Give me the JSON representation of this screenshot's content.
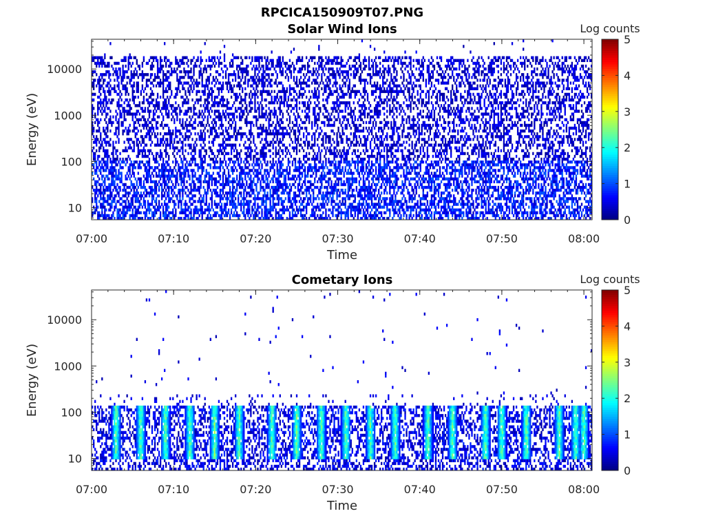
{
  "figure": {
    "title": "RPCICA150909T07.PNG"
  },
  "colorbar": {
    "label": "Log counts",
    "ticks": [
      "0",
      "1",
      "2",
      "3",
      "4",
      "5"
    ],
    "colormap": "jet"
  },
  "chart_data": [
    {
      "type": "heatmap",
      "title": "Solar Wind Ions",
      "xlabel": "Time",
      "ylabel": "Energy (eV)",
      "x_ticks": [
        "07:00",
        "07:10",
        "07:20",
        "07:30",
        "07:40",
        "07:50",
        "08:00"
      ],
      "x_range": [
        "07:00",
        "08:01"
      ],
      "y_scale": "log",
      "y_ticks": [
        "10",
        "100",
        "1000",
        "10000"
      ],
      "y_range": [
        5.5,
        44000
      ],
      "color_scale": "log counts",
      "color_range": [
        0,
        5
      ],
      "description_levels": {
        "below_100_eV": "mostly 0.3-1.1 (dark blue), dense",
        "100_to_20000_eV": "sparse speckle near 0.1-0.7",
        "above_20000_eV": "isolated points"
      }
    },
    {
      "type": "heatmap",
      "title": "Cometary Ions",
      "xlabel": "Time",
      "ylabel": "Energy (eV)",
      "x_ticks": [
        "07:00",
        "07:10",
        "07:20",
        "07:30",
        "07:40",
        "07:50",
        "08:00"
      ],
      "x_range": [
        "07:00",
        "08:01"
      ],
      "y_scale": "log",
      "y_ticks": [
        "10",
        "100",
        "1000",
        "10000"
      ],
      "y_range": [
        5.5,
        44000
      ],
      "color_scale": "log counts",
      "color_range": [
        0,
        5
      ],
      "burst_times": [
        "07:03",
        "07:06",
        "07:09",
        "07:12",
        "07:15",
        "07:18",
        "07:22",
        "07:25",
        "07:28",
        "07:31",
        "07:34",
        "07:37",
        "07:41",
        "07:44",
        "07:48",
        "07:50",
        "07:53",
        "07:57",
        "07:59",
        "08:00"
      ],
      "burst_energy_range_eV": [
        10,
        120
      ],
      "burst_peak_log_counts": 2.8
    }
  ]
}
